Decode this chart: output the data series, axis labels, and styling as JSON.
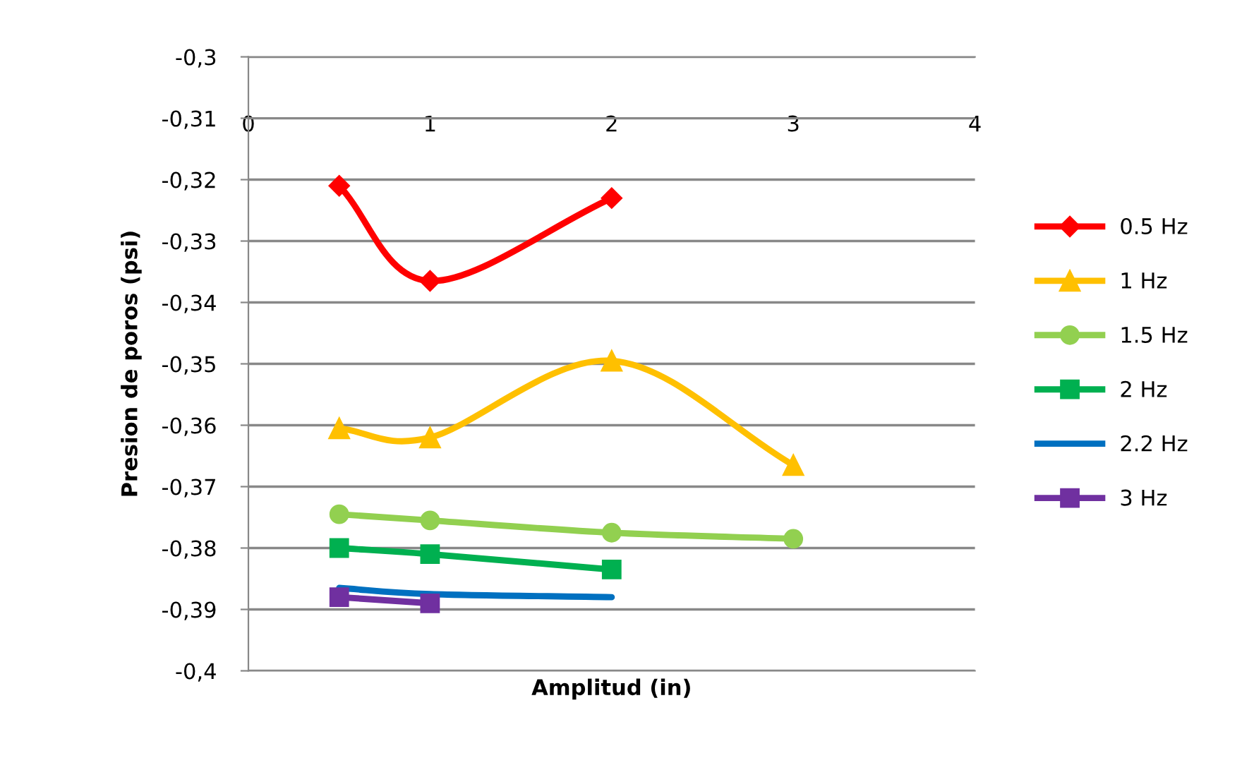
{
  "chart_data": {
    "type": "line",
    "xlabel": "Amplitud (in)",
    "ylabel": "Presion de poros (psi)",
    "xlim": [
      0,
      4
    ],
    "xticks": [
      0,
      1,
      2,
      3,
      4
    ],
    "ylim": [
      -0.4,
      -0.3
    ],
    "yticks": [
      {
        "value": -0.4,
        "label": "-0,4"
      },
      {
        "value": -0.39,
        "label": "-0,39"
      },
      {
        "value": -0.38,
        "label": "-0,38"
      },
      {
        "value": -0.37,
        "label": "-0,37"
      },
      {
        "value": -0.36,
        "label": "-0,36"
      },
      {
        "value": -0.35,
        "label": "-0,35"
      },
      {
        "value": -0.34,
        "label": "-0,34"
      },
      {
        "value": -0.33,
        "label": "-0,33"
      },
      {
        "value": -0.32,
        "label": "-0,32"
      },
      {
        "value": -0.31,
        "label": "-0,31"
      },
      {
        "value": -0.3,
        "label": "-0,3"
      }
    ],
    "grid": "y",
    "legend": "right",
    "series": [
      {
        "name": "0.5 Hz",
        "color": "#ff0000",
        "marker": "diamond",
        "x": [
          0.5,
          1,
          2
        ],
        "values": [
          -0.321,
          -0.3365,
          -0.323
        ]
      },
      {
        "name": "1 Hz",
        "color": "#ffc000",
        "marker": "triangle",
        "x": [
          0.5,
          1,
          2,
          3
        ],
        "values": [
          -0.3605,
          -0.362,
          -0.3495,
          -0.3665
        ]
      },
      {
        "name": "1.5 Hz",
        "color": "#92d050",
        "marker": "circle",
        "x": [
          0.5,
          1,
          2,
          3
        ],
        "values": [
          -0.3745,
          -0.3755,
          -0.3775,
          -0.3785
        ]
      },
      {
        "name": "2 Hz",
        "color": "#00b050",
        "marker": "square",
        "x": [
          0.5,
          1,
          2
        ],
        "values": [
          -0.38,
          -0.381,
          -0.3835
        ]
      },
      {
        "name": "2.2 Hz",
        "color": "#0070c0",
        "marker": "none",
        "x": [
          0.5,
          1,
          2
        ],
        "values": [
          -0.3865,
          -0.3875,
          -0.388
        ]
      },
      {
        "name": "3 Hz",
        "color": "#7030a0",
        "marker": "square",
        "x": [
          0.5,
          1
        ],
        "values": [
          -0.388,
          -0.389
        ]
      }
    ]
  }
}
